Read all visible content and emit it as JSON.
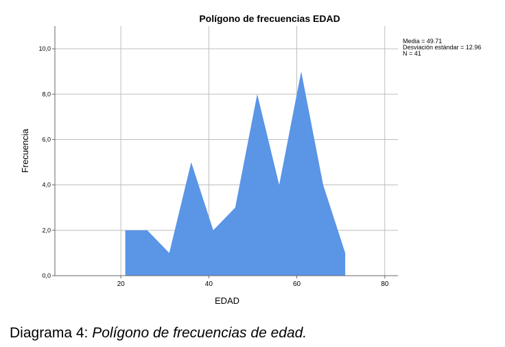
{
  "chart_data": {
    "type": "area",
    "title": "Polígono de frecuencias EDAD",
    "xlabel": "EDAD",
    "ylabel": "Frecuencia",
    "xlim": [
      5,
      83
    ],
    "ylim": [
      0,
      11
    ],
    "x_ticks": [
      20,
      40,
      60,
      80
    ],
    "x_tick_labels": [
      "20",
      "40",
      "60",
      "80"
    ],
    "y_ticks": [
      0,
      2,
      4,
      6,
      8,
      10
    ],
    "y_tick_labels": [
      "0,0",
      "2,0",
      "4,0",
      "6,0",
      "8,0",
      "10,0"
    ],
    "grid": true,
    "fill_color": "#5a95e6",
    "points": [
      {
        "x": 21,
        "y": 0
      },
      {
        "x": 21,
        "y": 2
      },
      {
        "x": 26,
        "y": 2
      },
      {
        "x": 31,
        "y": 1
      },
      {
        "x": 36,
        "y": 5
      },
      {
        "x": 41,
        "y": 2
      },
      {
        "x": 46,
        "y": 3
      },
      {
        "x": 51,
        "y": 8
      },
      {
        "x": 56,
        "y": 4
      },
      {
        "x": 61,
        "y": 9
      },
      {
        "x": 66,
        "y": 4
      },
      {
        "x": 71,
        "y": 1
      },
      {
        "x": 71,
        "y": 0
      }
    ],
    "stats": [
      "Media = 49.71",
      "Desviación estándar = 12.96",
      "N = 41"
    ]
  },
  "caption": {
    "prefix": "Diagrama 4:",
    "title": "Polígono de frecuencias de edad."
  }
}
